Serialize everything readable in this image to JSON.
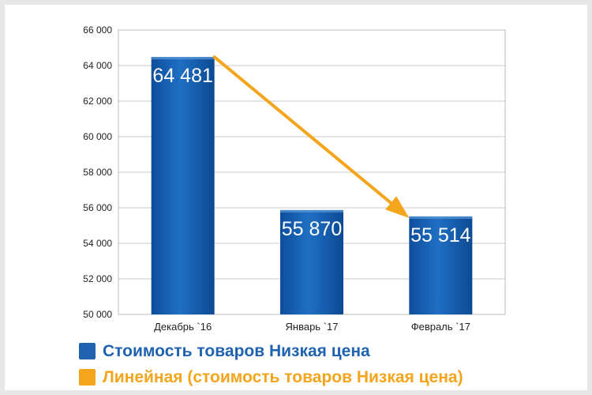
{
  "chart_data": {
    "type": "bar",
    "categories": [
      "Декабрь `16",
      "Январь `17",
      "Февраль `17"
    ],
    "values": [
      64481,
      55870,
      55514
    ],
    "value_labels": [
      "64 481",
      "55 870",
      "55 514"
    ],
    "ylim": [
      50000,
      66000
    ],
    "yticks": [
      50000,
      52000,
      54000,
      56000,
      58000,
      60000,
      62000,
      64000,
      66000
    ],
    "ytick_labels": [
      "50 000",
      "52 000",
      "54 000",
      "56 000",
      "58 000",
      "60 000",
      "62 000",
      "64 000",
      "66 000"
    ],
    "grid": true,
    "legend_position": "bottom",
    "series_name": "Стоимость товаров Низкая цена",
    "trendline_name": "Линейная (стоимость товаров Низкая цена)",
    "trendline_from": 64481,
    "trendline_to": 55514,
    "colors": {
      "bar": "#1f63b0",
      "trend": "#f4a51c"
    }
  }
}
